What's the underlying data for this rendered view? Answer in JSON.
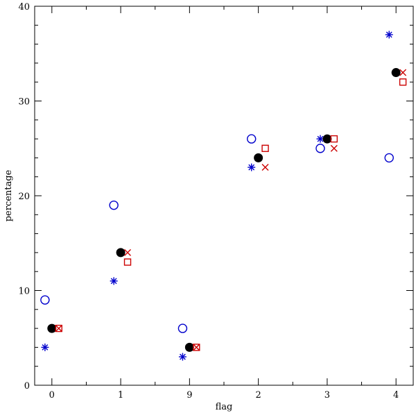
{
  "chart_data": {
    "type": "scatter",
    "title": "",
    "xlabel": "flag",
    "ylabel": "percentage",
    "categories": [
      "0",
      "1",
      "9",
      "2",
      "3",
      "4"
    ],
    "ylim": [
      0,
      40
    ],
    "yticks": [
      "0",
      "10",
      "20",
      "30",
      "40"
    ],
    "grid": false,
    "series": [
      {
        "name": "open circle",
        "marker": "circle-open",
        "color": "#0000cc",
        "offset": -0.1,
        "values": [
          9,
          19,
          6,
          26,
          25,
          24
        ]
      },
      {
        "name": "asterisk",
        "marker": "asterisk",
        "color": "#0000cc",
        "offset": -0.1,
        "values": [
          4,
          11,
          3,
          23,
          26,
          37
        ]
      },
      {
        "name": "filled circle",
        "marker": "circle-filled",
        "color": "#000000",
        "offset": 0,
        "values": [
          6,
          14,
          4,
          24,
          26,
          33
        ]
      },
      {
        "name": "cross",
        "marker": "cross",
        "color": "#cc0000",
        "offset": 0.1,
        "values": [
          6,
          14,
          4,
          23,
          25,
          33
        ]
      },
      {
        "name": "open square",
        "marker": "square-open",
        "color": "#cc0000",
        "offset": 0.1,
        "values": [
          6,
          13,
          4,
          25,
          26,
          32
        ]
      }
    ]
  }
}
